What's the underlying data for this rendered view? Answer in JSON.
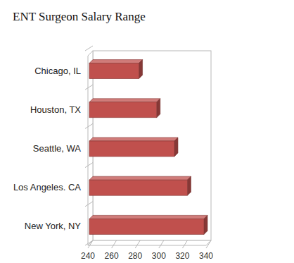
{
  "chart_data": {
    "type": "bar",
    "title": "ENT Surgeon Salary Range",
    "orientation": "horizontal",
    "categories": [
      "Chicago, IL",
      "Houston, TX",
      "Seattle, WA",
      "Los Angeles. CA",
      "New York, NY"
    ],
    "values": [
      282,
      297,
      312,
      323,
      337
    ],
    "color": "#c0504d",
    "xlim": [
      240,
      340
    ],
    "xticks": [
      240,
      260,
      280,
      300,
      320,
      340
    ],
    "grid": false
  }
}
